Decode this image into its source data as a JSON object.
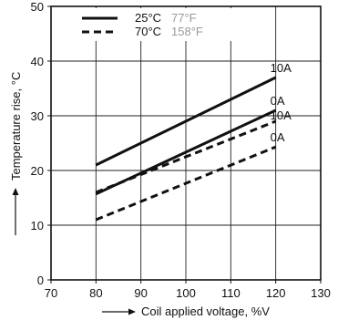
{
  "chart_data": {
    "type": "line",
    "xlabel": "Coil applied voltage, %V",
    "ylabel": "Temperature rise, °C",
    "xlim": [
      70,
      130
    ],
    "ylim": [
      0,
      50
    ],
    "x_ticks": [
      "70",
      "80",
      "90",
      "100",
      "110",
      "120",
      "130"
    ],
    "y_ticks": [
      "0",
      "10",
      "20",
      "30",
      "40",
      "50"
    ],
    "grid": true,
    "legend_position": "top-left",
    "legend": [
      {
        "label": "25°C",
        "label_f": "77°F",
        "style": "solid"
      },
      {
        "label": "70°C",
        "label_f": "158°F",
        "style": "dashed"
      }
    ],
    "series": [
      {
        "label": "10A",
        "style": "solid",
        "x": [
          80,
          120
        ],
        "y": [
          21,
          37
        ]
      },
      {
        "label": "0A",
        "style": "solid",
        "x": [
          80,
          120
        ],
        "y": [
          15.7,
          31
        ]
      },
      {
        "label": "10A",
        "style": "dashed",
        "x": [
          80,
          120
        ],
        "y": [
          16,
          29
        ]
      },
      {
        "label": "0A",
        "style": "dashed",
        "x": [
          80,
          120
        ],
        "y": [
          11,
          24.3
        ]
      }
    ]
  }
}
